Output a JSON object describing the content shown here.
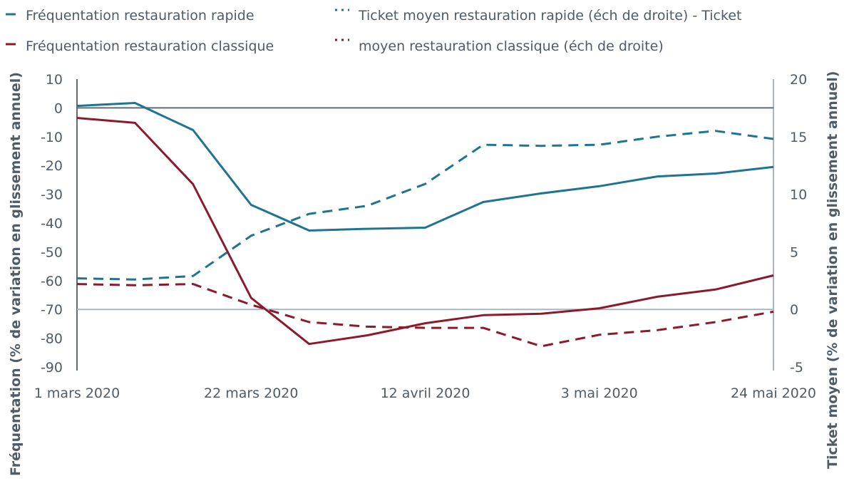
{
  "chart_data": {
    "type": "line",
    "title": "",
    "xlabel": "",
    "ylabel": "Fréquentation (% de variation en glissement annuel)",
    "ylabel_right": "Ticket moyen (% de variation en glissement annuel)",
    "ylim": [
      -90,
      10
    ],
    "ylim_right": [
      -5,
      20
    ],
    "yticks": [
      "10",
      "0",
      "-10",
      "-20",
      "-30",
      "-40",
      "-50",
      "-60",
      "-70",
      "-80",
      "-90"
    ],
    "yticks_right": [
      "20",
      "15",
      "10",
      "5",
      "0",
      "-5"
    ],
    "xticks": [
      "1 mars 2020",
      "22 mars 2020",
      "12 avril 2020",
      "3 mai 2020",
      "24 mai 2020"
    ],
    "x": [
      "2020-03-01",
      "2020-03-08",
      "2020-03-15",
      "2020-03-22",
      "2020-03-29",
      "2020-04-05",
      "2020-04-12",
      "2020-04-19",
      "2020-04-26",
      "2020-05-03",
      "2020-05-10",
      "2020-05-17",
      "2020-05-24"
    ],
    "grid": false,
    "legend_position": "top",
    "series": [
      {
        "name": "Fréquentation restauration rapide",
        "axis": "left",
        "style": "solid",
        "color": "#1f7491",
        "values": [
          0.7,
          1.7,
          -7.7,
          -33.7,
          -42.6,
          -42,
          -41.6,
          -32.7,
          -29.7,
          -27.2,
          -23.8,
          -22.8,
          -20.5
        ]
      },
      {
        "name": "Fréquentation restauration classique",
        "axis": "left",
        "style": "solid",
        "color": "#8b1a2b",
        "values": [
          -3.5,
          -5.2,
          -26.5,
          -66,
          -82,
          -79,
          -74.8,
          -72,
          -71.5,
          -69.6,
          -65.6,
          -63.1,
          -58.2
        ]
      },
      {
        "name": "Ticket moyen restauration rapide (éch de droite) - Ticket",
        "axis": "right",
        "style": "dashed",
        "color": "#1f7491",
        "values": [
          2.7,
          2.6,
          2.9,
          6.4,
          8.3,
          9.0,
          10.9,
          14.3,
          14.2,
          14.3,
          15.0,
          15.5,
          14.8
        ]
      },
      {
        "name": "moyen restauration classique (éch de droite)",
        "axis": "right",
        "style": "dashed",
        "color": "#8b1a2b",
        "values": [
          2.2,
          2.1,
          2.2,
          0.4,
          -1.1,
          -1.5,
          -1.6,
          -1.6,
          -3.2,
          -2.2,
          -1.8,
          -1.1,
          -0.2
        ]
      }
    ]
  }
}
